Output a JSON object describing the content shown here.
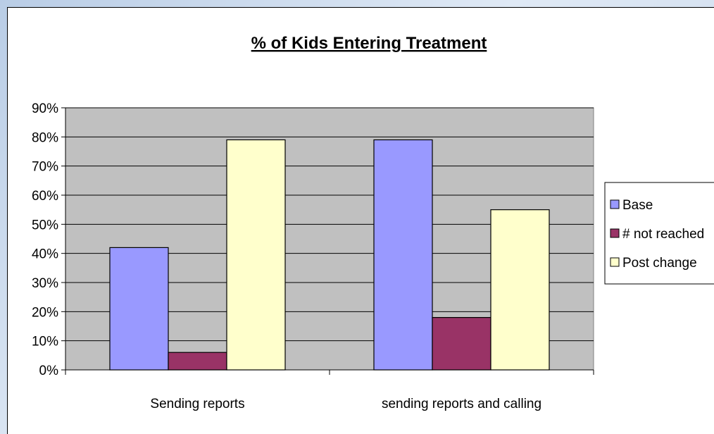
{
  "chart_data": {
    "type": "bar",
    "title": "% of Kids Entering Treatment",
    "xlabel": "",
    "ylabel": "",
    "categories": [
      "Sending reports",
      "sending reports and calling"
    ],
    "series": [
      {
        "name": "Base",
        "values": [
          0.42,
          0.79
        ]
      },
      {
        "name": "# not reached",
        "values": [
          0.06,
          0.18
        ]
      },
      {
        "name": "Post change",
        "values": [
          0.79,
          0.55
        ]
      }
    ],
    "ylim": [
      0,
      0.9
    ],
    "yticks": [
      "0%",
      "10%",
      "20%",
      "30%",
      "40%",
      "50%",
      "60%",
      "70%",
      "80%",
      "90%"
    ],
    "grid": true,
    "legend_position": "right",
    "colors": {
      "plot_background": "#c0c0c0",
      "series": [
        "#9999ff",
        "#993366",
        "#ffffcc"
      ]
    }
  }
}
